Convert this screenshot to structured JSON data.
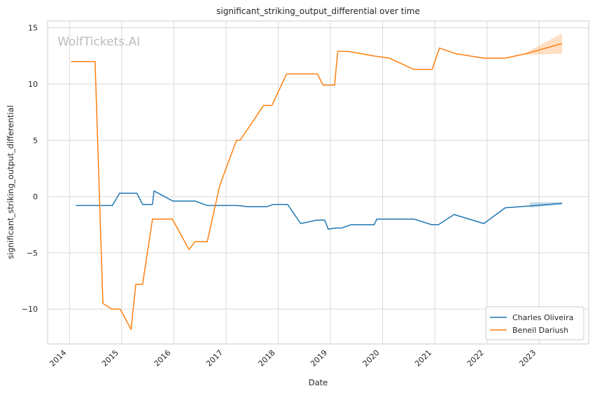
{
  "chart_data": {
    "type": "line",
    "title": "significant_striking_output_differential over time",
    "xlabel": "Date",
    "ylabel": "significant_striking_output_differential",
    "watermark": "WolfTickets.AI",
    "xlim": [
      2013.58,
      2023.95
    ],
    "ylim": [
      -13.1,
      15.6
    ],
    "x_ticks": [
      2014,
      2015,
      2016,
      2017,
      2018,
      2019,
      2020,
      2021,
      2022,
      2023
    ],
    "x_tick_labels": [
      "2014",
      "2015",
      "2016",
      "2017",
      "2018",
      "2019",
      "2020",
      "2021",
      "2022",
      "2023"
    ],
    "y_ticks": [
      -10,
      -5,
      0,
      5,
      10,
      15
    ],
    "y_tick_labels": [
      "−10",
      "−5",
      "0",
      "5",
      "10",
      "15"
    ],
    "grid": true,
    "legend_position": "bottom-right",
    "series": [
      {
        "name": "Charles Oliveira",
        "color": "#1f77b4",
        "x": [
          2014.12,
          2014.32,
          2014.62,
          2014.82,
          2014.96,
          2015.14,
          2015.29,
          2015.4,
          2015.59,
          2015.62,
          2015.82,
          2015.98,
          2016.19,
          2016.41,
          2016.64,
          2016.97,
          2017.22,
          2017.41,
          2017.58,
          2017.78,
          2017.91,
          2018.18,
          2018.43,
          2018.73,
          2018.89,
          2018.96,
          2019.1,
          2019.21,
          2019.4,
          2019.6,
          2019.84,
          2019.89,
          2020.2,
          2020.6,
          2020.94,
          2021.07,
          2021.37,
          2021.94,
          2022.35,
          2022.92,
          2023.44
        ],
        "y": [
          -0.8,
          -0.8,
          -0.8,
          -0.8,
          0.3,
          0.3,
          0.3,
          -0.7,
          -0.7,
          0.5,
          0.0,
          -0.4,
          -0.4,
          -0.4,
          -0.8,
          -0.8,
          -0.8,
          -0.9,
          -0.9,
          -0.9,
          -0.7,
          -0.7,
          -2.4,
          -2.1,
          -2.1,
          -2.9,
          -2.8,
          -2.8,
          -2.5,
          -2.5,
          -2.5,
          -2.0,
          -2.0,
          -2.0,
          -2.5,
          -2.5,
          -1.6,
          -2.4,
          -1.0,
          -0.8,
          -0.6
        ],
        "band": {
          "x": [
            2022.82,
            2023.44
          ],
          "lower": [
            -1.0,
            -0.7
          ],
          "upper": [
            -0.5,
            -0.5
          ]
        }
      },
      {
        "name": "Beneil Dariush",
        "color": "#ff7f0e",
        "x": [
          2014.03,
          2014.49,
          2014.64,
          2014.81,
          2014.97,
          2015.18,
          2015.27,
          2015.4,
          2015.59,
          2015.97,
          2016.29,
          2016.41,
          2016.64,
          2016.88,
          2017.2,
          2017.27,
          2017.72,
          2017.88,
          2018.16,
          2018.75,
          2018.86,
          2019.08,
          2019.14,
          2019.35,
          2019.82,
          2020.13,
          2020.6,
          2020.95,
          2021.09,
          2021.4,
          2021.94,
          2022.35,
          2022.75,
          2023.44
        ],
        "y": [
          12.0,
          12.0,
          -9.5,
          -10.0,
          -10.0,
          -11.8,
          -7.8,
          -7.8,
          -2.0,
          -2.0,
          -4.7,
          -4.0,
          -4.0,
          1.0,
          5.0,
          5.0,
          8.1,
          8.1,
          10.9,
          10.9,
          9.9,
          9.9,
          12.9,
          12.9,
          12.5,
          12.3,
          11.3,
          11.3,
          13.2,
          12.7,
          12.3,
          12.3,
          12.7,
          13.6
        ],
        "band": {
          "x": [
            2022.75,
            2023.44
          ],
          "lower": [
            12.6,
            12.7
          ],
          "upper": [
            12.8,
            14.5
          ]
        }
      }
    ]
  }
}
